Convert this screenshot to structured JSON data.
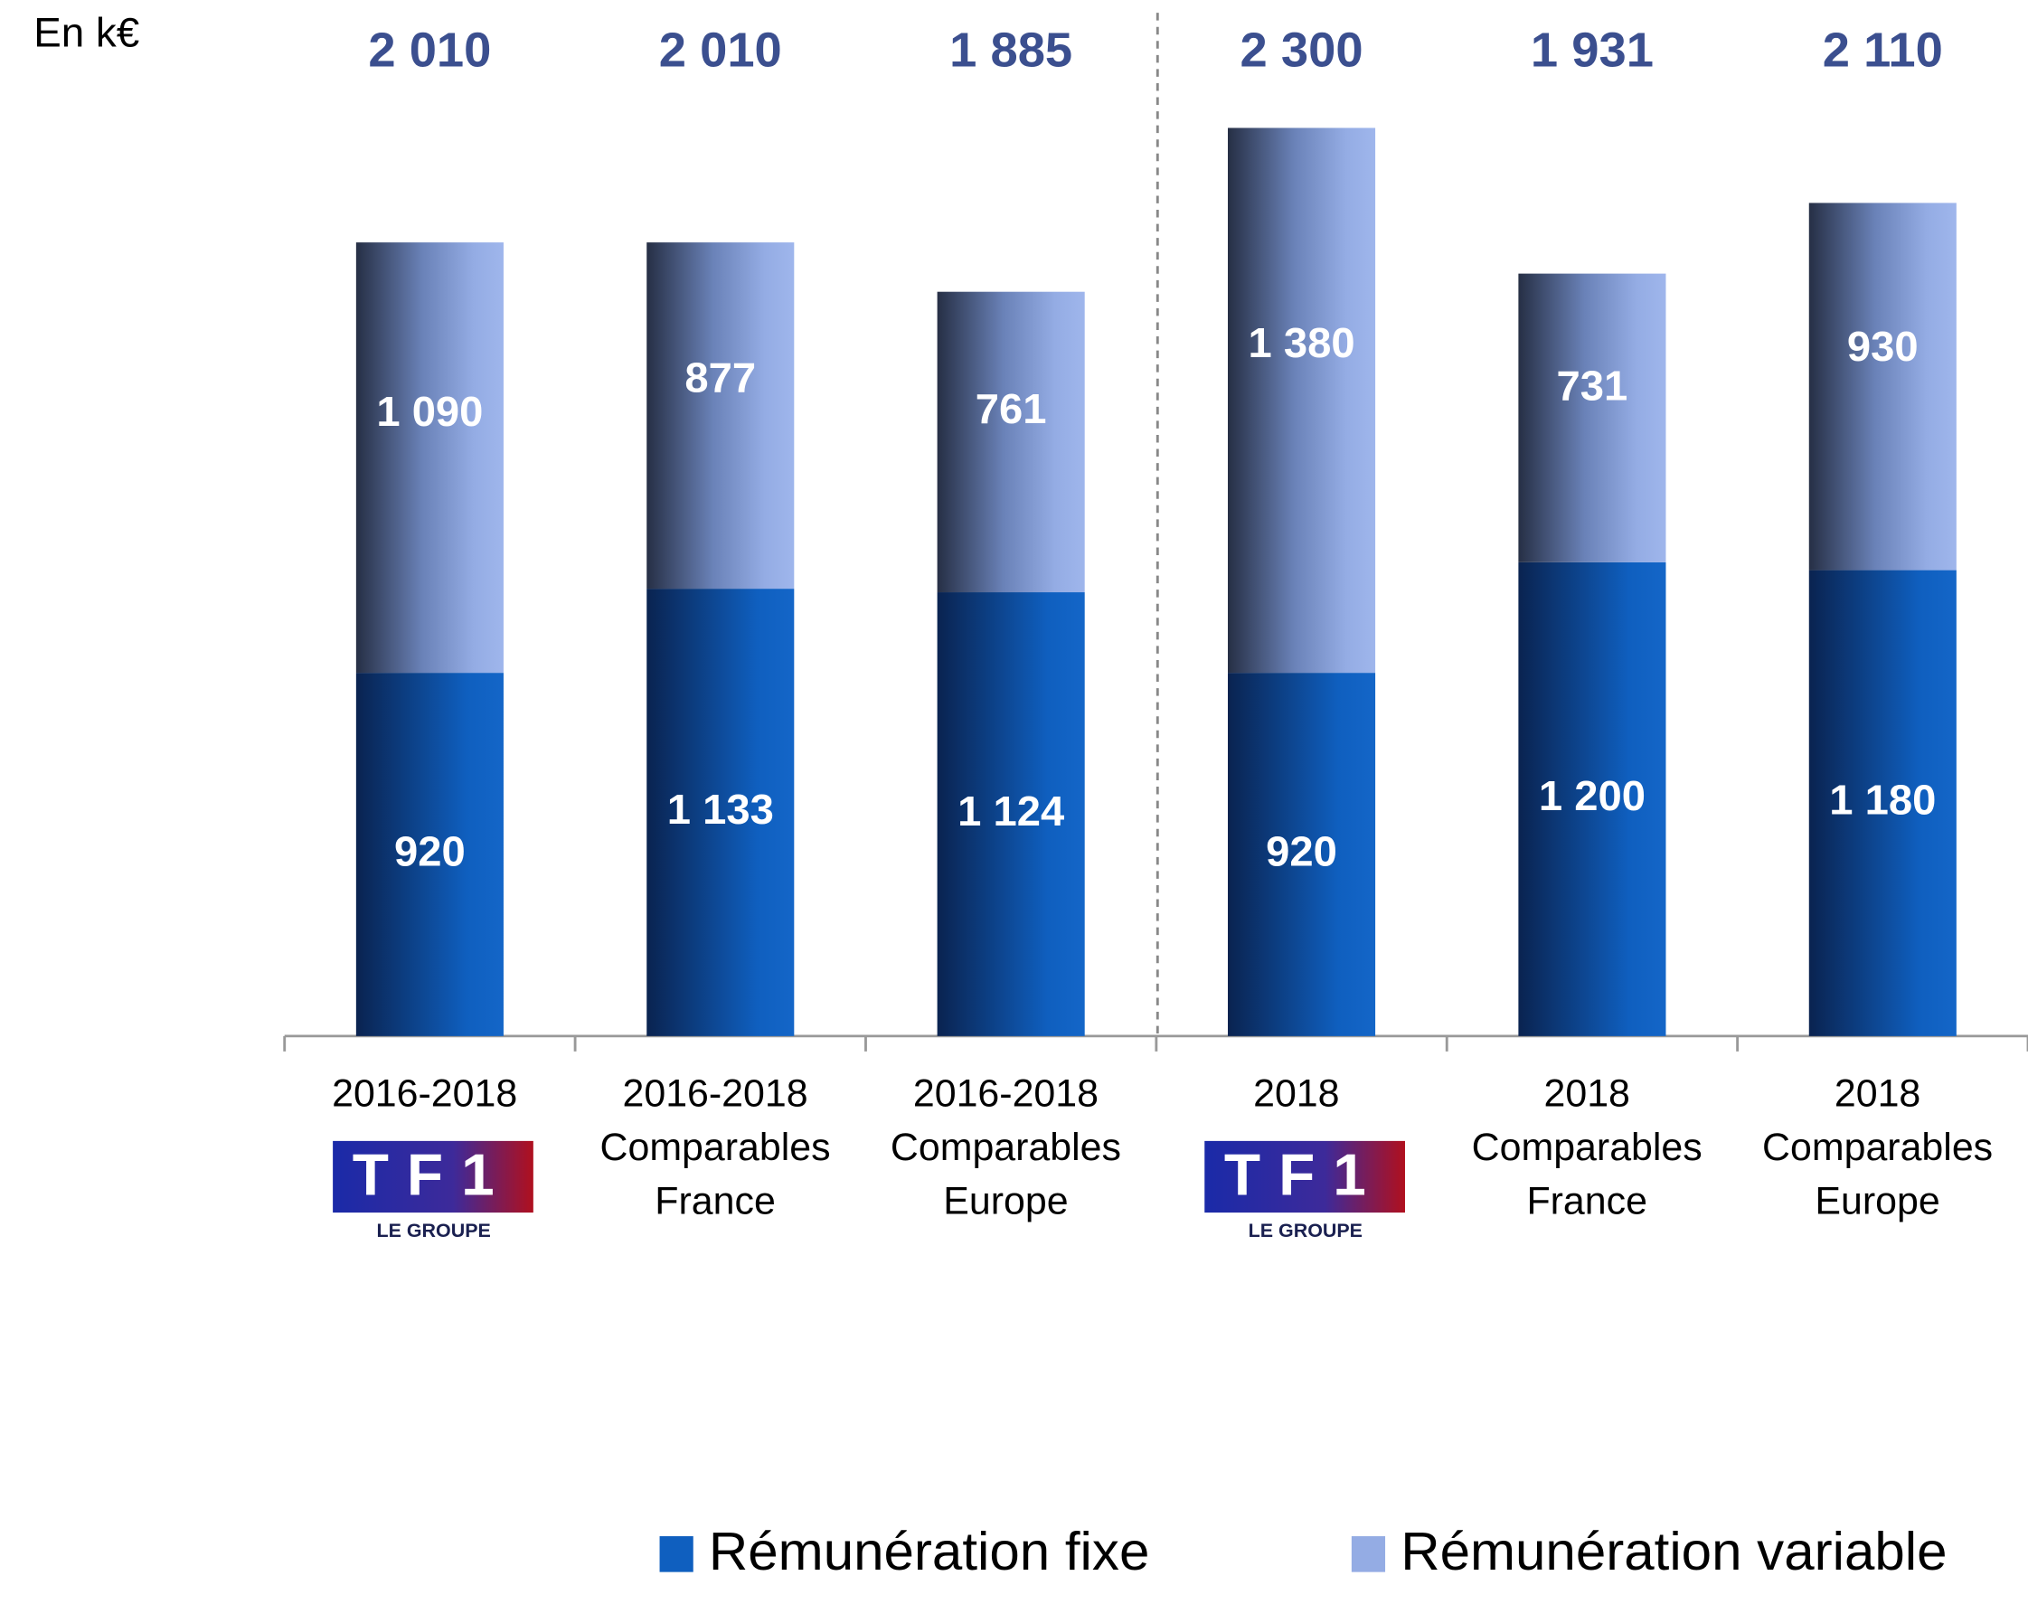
{
  "chart_data": {
    "type": "stacked_bar",
    "unit_label": "En k€",
    "categories": [
      [
        "2016-2018",
        {
          "logo": "TF1",
          "caption": "LE GROUPE"
        }
      ],
      [
        "2016-2018",
        "Comparables",
        "France"
      ],
      [
        "2016-2018",
        "Comparables",
        "Europe"
      ],
      [
        "2018",
        {
          "logo": "TF1",
          "caption": "LE GROUPE"
        }
      ],
      [
        "2018",
        "Comparables",
        "France"
      ],
      [
        "2018",
        "Comparables",
        "Europe"
      ]
    ],
    "series": [
      {
        "name": "Rémunération fixe",
        "color": "#0f5fbf",
        "values": [
          920,
          1133,
          1124,
          920,
          1200,
          1180
        ],
        "value_labels": [
          "920",
          "1 133",
          "1 124",
          "920",
          "1 200",
          "1 180"
        ]
      },
      {
        "name": "Rémunération variable",
        "color": "#94ace4",
        "values": [
          1090,
          877,
          761,
          1380,
          731,
          930
        ],
        "value_labels": [
          "1 090",
          "877",
          "761",
          "1 380",
          "731",
          "930"
        ]
      }
    ],
    "totals": [
      2010,
      2010,
      1885,
      2300,
      1931,
      2110
    ],
    "total_labels": [
      "2 010",
      "2 010",
      "1 885",
      "2 300",
      "1 931",
      "2 110"
    ],
    "total_color": "#3b4f8f"
  }
}
